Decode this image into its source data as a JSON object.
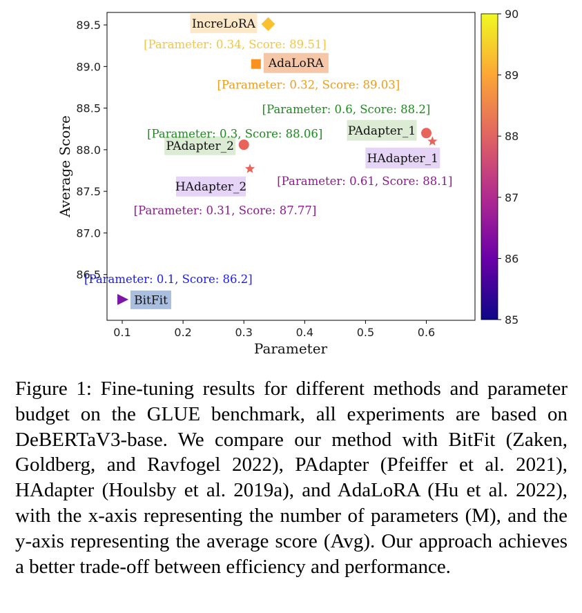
{
  "chart_data": {
    "type": "scatter",
    "xlabel": "Parameter",
    "ylabel": "Average Score",
    "xlim": [
      0.075,
      0.68
    ],
    "ylim": [
      85.95,
      89.65
    ],
    "xticks": [
      "0.1",
      "0.2",
      "0.3",
      "0.4",
      "0.5",
      "0.6"
    ],
    "yticks": [
      "86.5",
      "87.0",
      "87.5",
      "88.0",
      "88.5",
      "89.0",
      "89.5"
    ],
    "colorbar": {
      "min": 85,
      "max": 90,
      "ticks": [
        "85",
        "86",
        "87",
        "88",
        "89",
        "90"
      ],
      "colormap": "plasma"
    },
    "points": [
      {
        "name": "BitFit",
        "x": 0.1,
        "y": 86.2,
        "marker": "triangle-right",
        "color": "#7b16a8",
        "annotation": "[Parameter: 0.1, Score: 86.2]",
        "ann_color": "#1a1aff",
        "label_bg": "#aabfe0"
      },
      {
        "name": "PAdapter_2",
        "x": 0.3,
        "y": 88.06,
        "marker": "circle",
        "color": "#e8645a",
        "annotation": "[Parameter: 0.3, Score: 88.06]",
        "ann_color": "#1d8a1d",
        "label_bg": "#dcebd3"
      },
      {
        "name": "HAdapter_2",
        "x": 0.31,
        "y": 87.77,
        "marker": "star",
        "color": "#e8645a",
        "annotation": "[Parameter: 0.31, Score: 87.77]",
        "ann_color": "#8b1a8b",
        "label_bg": "#e5d4f5"
      },
      {
        "name": "AdaLoRA",
        "x": 0.32,
        "y": 89.03,
        "marker": "square",
        "color": "#f7931e",
        "annotation": "[Parameter: 0.32, Score: 89.03]",
        "ann_color": "#f39c12",
        "label_bg": "#f5c7a6"
      },
      {
        "name": "IncreLoRA",
        "x": 0.34,
        "y": 89.51,
        "marker": "diamond",
        "color": "#fbc02d",
        "annotation": "[Parameter: 0.34, Score: 89.51]",
        "ann_color": "#f4c542",
        "label_bg": "#fbe8c8"
      },
      {
        "name": "PAdapter_1",
        "x": 0.6,
        "y": 88.2,
        "marker": "circle",
        "color": "#e8645a",
        "annotation": "[Parameter: 0.6, Score: 88.2]",
        "ann_color": "#1d8a1d",
        "label_bg": "#dcebd3"
      },
      {
        "name": "HAdapter_1",
        "x": 0.61,
        "y": 88.1,
        "marker": "star",
        "color": "#e8645a",
        "annotation": "[Parameter: 0.61, Score: 88.1]",
        "ann_color": "#8b1a8b",
        "label_bg": "#e5d4f5"
      }
    ]
  },
  "caption": "Figure 1: Fine-tuning results for different methods and parameter budget on the GLUE benchmark, all experiments are based on DeBERTaV3-base. We compare our method with BitFit (Zaken, Goldberg, and Ravfogel 2022), PAdapter (Pfeiffer et al. 2021), HAdapter (Houlsby et al. 2019a), and AdaLoRA (Hu et al. 2022), with the x-axis representing the number of parameters (M), and the y-axis representing the average score (Avg). Our approach achieves a better trade-off between efficiency and performance."
}
